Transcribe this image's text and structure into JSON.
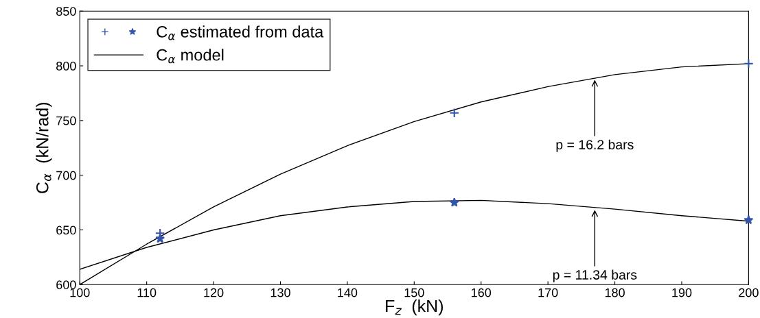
{
  "chart_data": {
    "type": "line",
    "xlabel": "F$_{z}$  (kN)",
    "ylabel": "C$_{α}$  (kN/rad)",
    "xlim": [
      100,
      200
    ],
    "ylim": [
      600,
      850
    ],
    "xticks": [
      100,
      110,
      120,
      130,
      140,
      150,
      160,
      170,
      180,
      190,
      200
    ],
    "yticks": [
      600,
      650,
      700,
      750,
      800,
      850
    ],
    "grid": false,
    "legend": "top left",
    "series": [
      {
        "name": "C$_{α}$ estimated from data",
        "type": "scatter",
        "marker": "cross",
        "color": "#3355aa",
        "x": [
          112,
          156,
          200
        ],
        "values": [
          647,
          757,
          802
        ]
      },
      {
        "type": "scatter",
        "marker": "star",
        "color": "#3355aa",
        "x": [
          112,
          156,
          200
        ],
        "values": [
          642,
          675,
          659
        ]
      },
      {
        "name": "C$_{α}$ model",
        "marker": "none",
        "color": "#000000",
        "x": [
          100,
          110,
          120,
          130,
          140,
          150,
          160,
          170,
          180,
          190,
          200
        ],
        "values": [
          600,
          637,
          671,
          701,
          727,
          749,
          767,
          781,
          792,
          799,
          802
        ]
      },
      {
        "marker": "none",
        "color": "#000000",
        "x": [
          100,
          110,
          120,
          130,
          140,
          150,
          160,
          170,
          180,
          190,
          200
        ],
        "values": [
          614,
          634,
          650,
          663,
          671,
          676,
          677,
          674,
          669,
          663,
          658
        ]
      }
    ],
    "annotations": [
      {
        "text": "p = 16.2 bars",
        "x": 177,
        "y": 789
      },
      {
        "text": "p = 11.34 bars",
        "x": 177,
        "y": 670
      }
    ]
  }
}
